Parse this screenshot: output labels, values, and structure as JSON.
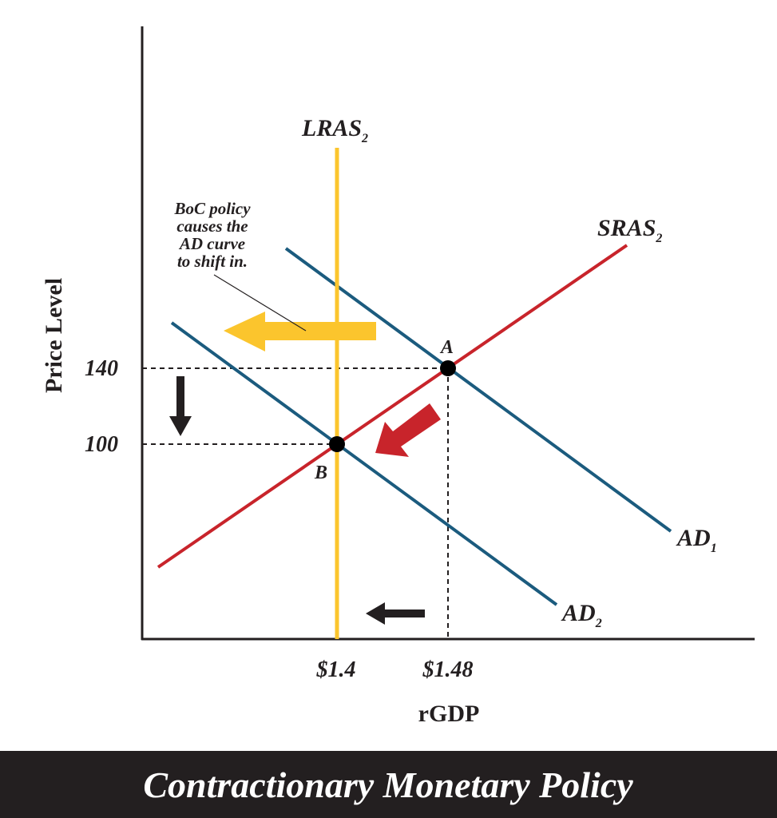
{
  "title": "Contractionary Monetary Policy",
  "axes": {
    "y_label": "Price Level",
    "x_label": "rGDP"
  },
  "y_labels": [
    "140",
    "100"
  ],
  "x_labels": [
    "$1.4",
    "$1.48"
  ],
  "curves": [
    {
      "name": "LRAS",
      "subscript": "2"
    },
    {
      "name": "SRAS",
      "subscript": "2"
    },
    {
      "name": "AD",
      "subscript": "1"
    },
    {
      "name": "AD",
      "subscript": "2"
    }
  ],
  "points": [
    "A",
    "B"
  ],
  "annotation": [
    "BoC policy",
    "causes the",
    "AD curve",
    "to shift in."
  ]
}
